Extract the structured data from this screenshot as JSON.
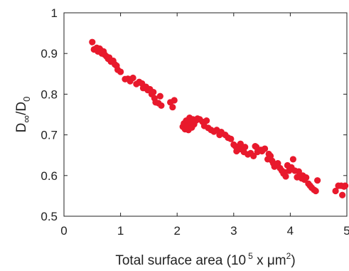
{
  "chart_data": {
    "type": "scatter",
    "xlabel": {
      "prefix": "Total surface area (10",
      "exponent": "5",
      "middle": " x μm",
      "exponent2": "2",
      "suffix": ")"
    },
    "ylabel": {
      "main": "D",
      "sub": "∞",
      "sep": "/D",
      "sub2": "0"
    },
    "xlim": [
      0,
      5
    ],
    "ylim": [
      0.5,
      1
    ],
    "x_ticks": [
      "0",
      "1",
      "2",
      "3",
      "4",
      "5"
    ],
    "y_ticks": [
      "0.5",
      "0.6",
      "0.7",
      "0.8",
      "0.9",
      "1"
    ],
    "grid": false,
    "marker_color": "#e8192c",
    "series": [
      {
        "points": [
          [
            0.5,
            0.928
          ],
          [
            0.53,
            0.91
          ],
          [
            0.58,
            0.914
          ],
          [
            0.6,
            0.905
          ],
          [
            0.63,
            0.912
          ],
          [
            0.65,
            0.908
          ],
          [
            0.67,
            0.9
          ],
          [
            0.7,
            0.905
          ],
          [
            0.72,
            0.897
          ],
          [
            0.75,
            0.893
          ],
          [
            0.78,
            0.887
          ],
          [
            0.8,
            0.89
          ],
          [
            0.83,
            0.88
          ],
          [
            0.87,
            0.882
          ],
          [
            0.9,
            0.873
          ],
          [
            0.93,
            0.87
          ],
          [
            0.95,
            0.86
          ],
          [
            1.0,
            0.855
          ],
          [
            1.08,
            0.837
          ],
          [
            1.13,
            0.838
          ],
          [
            1.17,
            0.832
          ],
          [
            1.22,
            0.84
          ],
          [
            1.28,
            0.825
          ],
          [
            1.33,
            0.83
          ],
          [
            1.38,
            0.826
          ],
          [
            1.4,
            0.815
          ],
          [
            1.45,
            0.818
          ],
          [
            1.48,
            0.81
          ],
          [
            1.52,
            0.812
          ],
          [
            1.55,
            0.8
          ],
          [
            1.58,
            0.805
          ],
          [
            1.6,
            0.79
          ],
          [
            1.62,
            0.78
          ],
          [
            1.67,
            0.778
          ],
          [
            1.7,
            0.795
          ],
          [
            1.72,
            0.772
          ],
          [
            1.88,
            0.78
          ],
          [
            1.92,
            0.768
          ],
          [
            1.95,
            0.785
          ],
          [
            2.1,
            0.72
          ],
          [
            2.12,
            0.728
          ],
          [
            2.14,
            0.714
          ],
          [
            2.16,
            0.735
          ],
          [
            2.18,
            0.722
          ],
          [
            2.2,
            0.712
          ],
          [
            2.22,
            0.742
          ],
          [
            2.24,
            0.73
          ],
          [
            2.26,
            0.718
          ],
          [
            2.28,
            0.738
          ],
          [
            2.3,
            0.726
          ],
          [
            2.33,
            0.735
          ],
          [
            2.36,
            0.74
          ],
          [
            2.4,
            0.738
          ],
          [
            2.45,
            0.732
          ],
          [
            2.48,
            0.722
          ],
          [
            2.52,
            0.735
          ],
          [
            2.55,
            0.717
          ],
          [
            2.6,
            0.712
          ],
          [
            2.65,
            0.708
          ],
          [
            2.7,
            0.712
          ],
          [
            2.75,
            0.7
          ],
          [
            2.78,
            0.707
          ],
          [
            2.85,
            0.7
          ],
          [
            2.9,
            0.693
          ],
          [
            2.95,
            0.69
          ],
          [
            3.0,
            0.676
          ],
          [
            3.03,
            0.672
          ],
          [
            3.05,
            0.66
          ],
          [
            3.08,
            0.67
          ],
          [
            3.1,
            0.665
          ],
          [
            3.12,
            0.678
          ],
          [
            3.15,
            0.665
          ],
          [
            3.18,
            0.658
          ],
          [
            3.2,
            0.67
          ],
          [
            3.25,
            0.652
          ],
          [
            3.3,
            0.655
          ],
          [
            3.35,
            0.648
          ],
          [
            3.38,
            0.672
          ],
          [
            3.4,
            0.67
          ],
          [
            3.42,
            0.658
          ],
          [
            3.48,
            0.663
          ],
          [
            3.5,
            0.66
          ],
          [
            3.55,
            0.666
          ],
          [
            3.6,
            0.64
          ],
          [
            3.62,
            0.653
          ],
          [
            3.65,
            0.648
          ],
          [
            3.68,
            0.636
          ],
          [
            3.7,
            0.63
          ],
          [
            3.72,
            0.622
          ],
          [
            3.75,
            0.627
          ],
          [
            3.78,
            0.63
          ],
          [
            3.82,
            0.618
          ],
          [
            3.85,
            0.612
          ],
          [
            3.88,
            0.605
          ],
          [
            3.9,
            0.608
          ],
          [
            3.92,
            0.598
          ],
          [
            3.95,
            0.625
          ],
          [
            3.98,
            0.612
          ],
          [
            4.02,
            0.62
          ],
          [
            4.05,
            0.64
          ],
          [
            4.08,
            0.612
          ],
          [
            4.12,
            0.596
          ],
          [
            4.15,
            0.61
          ],
          [
            4.18,
            0.598
          ],
          [
            4.2,
            0.593
          ],
          [
            4.22,
            0.6
          ],
          [
            4.25,
            0.59
          ],
          [
            4.28,
            0.595
          ],
          [
            4.32,
            0.58
          ],
          [
            4.35,
            0.575
          ],
          [
            4.38,
            0.57
          ],
          [
            4.42,
            0.565
          ],
          [
            4.45,
            0.562
          ],
          [
            4.48,
            0.588
          ],
          [
            4.8,
            0.562
          ],
          [
            4.85,
            0.575
          ],
          [
            4.9,
            0.575
          ],
          [
            4.92,
            0.552
          ],
          [
            4.95,
            0.573
          ],
          [
            4.97,
            0.575
          ]
        ]
      }
    ]
  }
}
